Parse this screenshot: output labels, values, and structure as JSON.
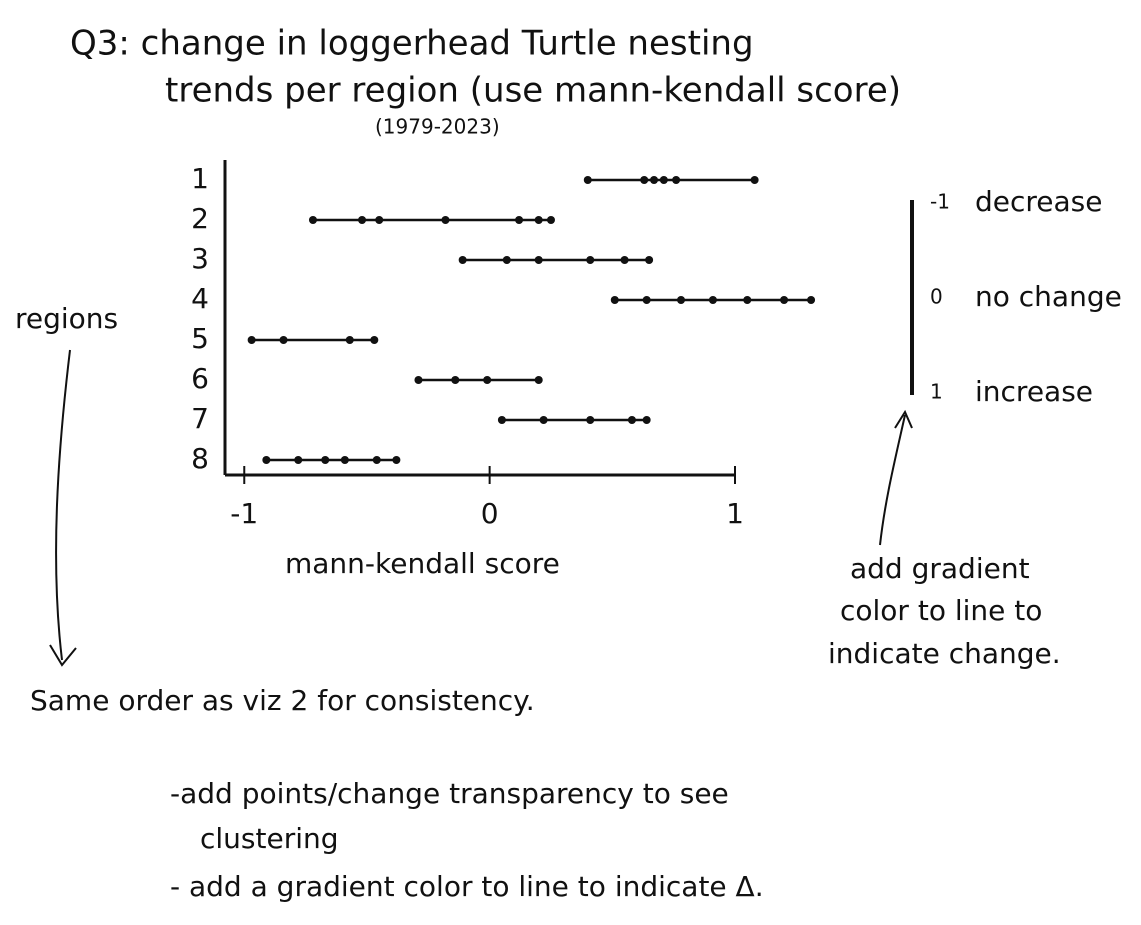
{
  "chart_data": {
    "type": "strip",
    "title": [
      "Q3: change in loggerhead Turtle nesting",
      "trends per region (use mann-kendall score)"
    ],
    "subtitle": "(1979-2023)",
    "y_label": "regions",
    "x_label": "mann-kendall score",
    "categories": [
      "1",
      "2",
      "3",
      "4",
      "5",
      "6",
      "7",
      "8"
    ],
    "values": [
      [
        0.4,
        0.63,
        0.67,
        0.71,
        0.76,
        1.08
      ],
      [
        -0.72,
        -0.52,
        -0.45,
        -0.18,
        0.12,
        0.2,
        0.25
      ],
      [
        -0.11,
        0.07,
        0.2,
        0.41,
        0.55,
        0.65
      ],
      [
        0.51,
        0.64,
        0.78,
        0.91,
        1.05,
        1.2,
        1.31
      ],
      [
        -0.97,
        -0.84,
        -0.57,
        -0.47
      ],
      [
        -0.29,
        -0.14,
        -0.01,
        0.2
      ],
      [
        0.05,
        0.22,
        0.41,
        0.58,
        0.64
      ],
      [
        -0.91,
        -0.78,
        -0.67,
        -0.59,
        -0.46,
        -0.38
      ]
    ],
    "color": "#111111",
    "xlim": [
      -1.05,
      1
    ],
    "xticks": [
      -1,
      0,
      1
    ],
    "legend": [
      {
        "value": -1,
        "label": "decrease"
      },
      {
        "value": 0,
        "label": "no change"
      },
      {
        "value": 1,
        "label": "increase"
      }
    ],
    "annotations": {
      "legend_note": [
        "add gradient",
        "color to line to",
        "indicate change."
      ],
      "order_note": "Same order as viz 2 for consistency.",
      "todo": [
        "-add points/change transparency to see",
        "clustering",
        "- add a gradient color to line to indicate Δ."
      ]
    }
  }
}
